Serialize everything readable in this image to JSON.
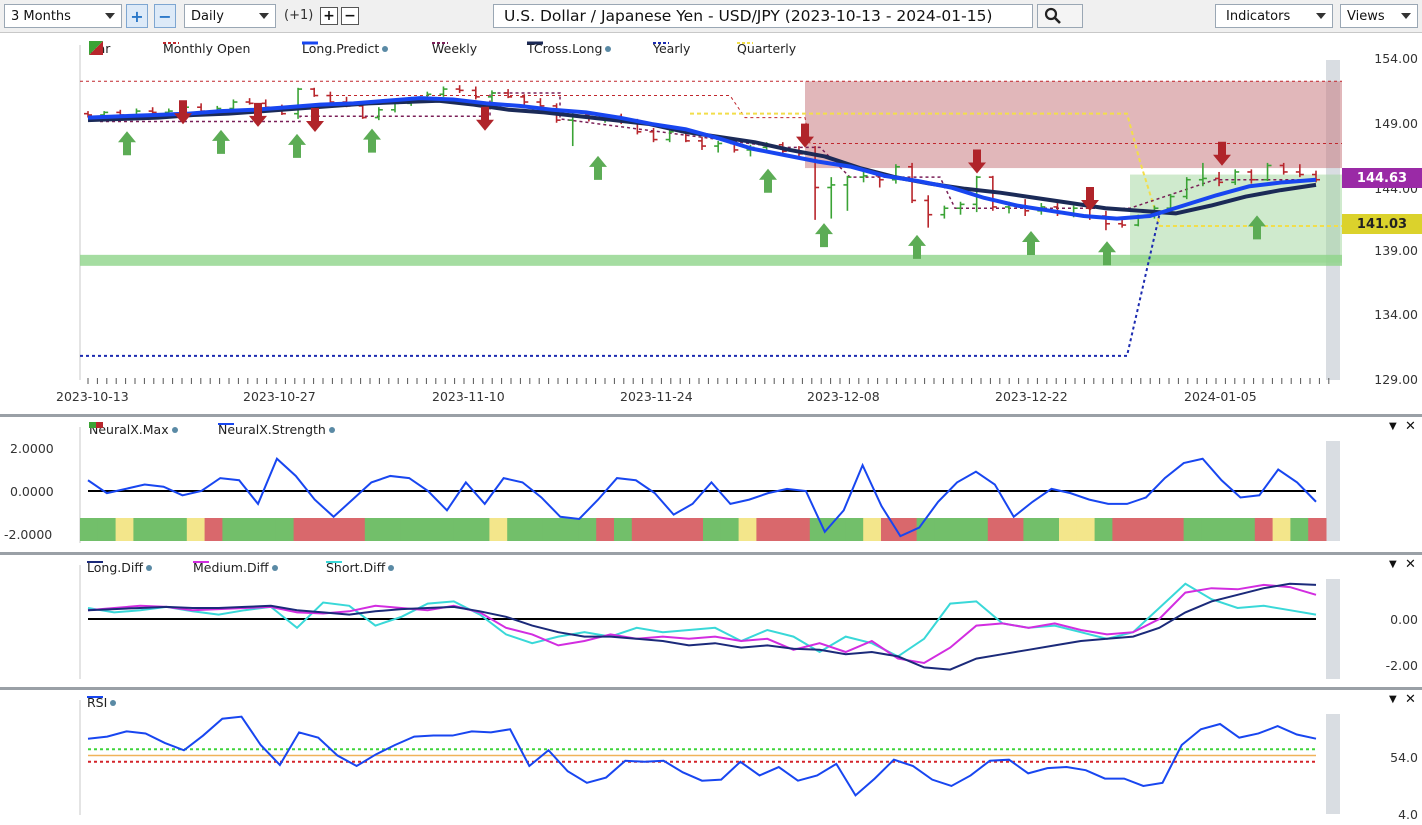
{
  "toolbar": {
    "period": "3 Months",
    "zoom_in": "+",
    "zoom_out": "−",
    "interval": "Daily",
    "offset": "(+1)",
    "add": "+",
    "remove": "−",
    "title": "U.S. Dollar / Japanese Yen - USD/JPY (2023-10-13 - 2024-01-15)",
    "indicators": "Indicators",
    "views": "Views"
  },
  "main_chart": {
    "legend": [
      "Bar",
      "Monthly Open",
      "Long.Predict",
      "Weekly",
      "TCross.Long",
      "Yearly",
      "Quarterly"
    ],
    "y_ticks": [
      "154.00",
      "149.00",
      "144.00",
      "139.00",
      "134.00",
      "129.00"
    ],
    "x_ticks": [
      "2023-10-13",
      "2023-10-27",
      "2023-11-10",
      "2023-11-24",
      "2023-12-08",
      "2023-12-22",
      "2024-01-05"
    ],
    "price_tags": [
      "144.63",
      "141.03"
    ],
    "colors": {
      "up": "#3aa335",
      "down": "#b8262c",
      "long_predict": "#1846f0",
      "tcross": "#1b2a57",
      "monthly": "#c0272d",
      "weekly": "#7a1f57",
      "yearly": "#1c2bb0",
      "quarterly": "#f2de4a"
    }
  },
  "neural_panel": {
    "legend": [
      "NeuralX.Max",
      "NeuralX.Strength"
    ],
    "y_ticks": [
      "2.0000",
      "0.0000",
      "-2.0000"
    ],
    "controls": [
      "▼",
      "✕"
    ]
  },
  "diff_panel": {
    "legend": [
      "Long.Diff",
      "Medium.Diff",
      "Short.Diff"
    ],
    "y_ticks": [
      "0.00",
      "-2.00"
    ],
    "controls": [
      "▼",
      "✕"
    ]
  },
  "rsi_panel": {
    "legend": [
      "RSI"
    ],
    "y_ticks": [
      "54.0",
      "4.0"
    ],
    "controls": [
      "▼",
      "✕"
    ]
  },
  "chart_data": {
    "type": "candlestick",
    "title": "U.S. Dollar / Japanese Yen - USD/JPY (2023-10-13 - 2024-01-15)",
    "x_range": [
      "2023-10-13",
      "2024-01-15"
    ],
    "ylim": [
      129,
      154
    ],
    "bars": [
      {
        "o": 149.7,
        "h": 149.9,
        "l": 149.4,
        "c": 149.6
      },
      {
        "o": 149.6,
        "h": 149.9,
        "l": 149.5,
        "c": 149.8
      },
      {
        "o": 149.8,
        "h": 150.0,
        "l": 149.5,
        "c": 149.6
      },
      {
        "o": 149.6,
        "h": 150.1,
        "l": 149.5,
        "c": 149.9
      },
      {
        "o": 149.9,
        "h": 150.2,
        "l": 149.6,
        "c": 149.8
      },
      {
        "o": 149.8,
        "h": 150.1,
        "l": 149.6,
        "c": 149.9
      },
      {
        "o": 149.9,
        "h": 150.4,
        "l": 149.7,
        "c": 150.2
      },
      {
        "o": 150.2,
        "h": 150.5,
        "l": 149.8,
        "c": 149.9
      },
      {
        "o": 149.9,
        "h": 150.3,
        "l": 149.7,
        "c": 150.1
      },
      {
        "o": 150.1,
        "h": 150.8,
        "l": 150.0,
        "c": 150.6
      },
      {
        "o": 150.6,
        "h": 150.9,
        "l": 150.4,
        "c": 150.5
      },
      {
        "o": 150.5,
        "h": 150.8,
        "l": 150.1,
        "c": 150.2
      },
      {
        "o": 150.2,
        "h": 150.4,
        "l": 149.6,
        "c": 149.7
      },
      {
        "o": 149.7,
        "h": 151.7,
        "l": 149.3,
        "c": 151.6
      },
      {
        "o": 151.6,
        "h": 151.7,
        "l": 151.0,
        "c": 151.1
      },
      {
        "o": 151.1,
        "h": 151.4,
        "l": 150.5,
        "c": 150.6
      },
      {
        "o": 150.6,
        "h": 151.0,
        "l": 150.2,
        "c": 150.3
      },
      {
        "o": 150.3,
        "h": 150.6,
        "l": 149.3,
        "c": 149.4
      },
      {
        "o": 149.4,
        "h": 150.2,
        "l": 149.2,
        "c": 150.0
      },
      {
        "o": 150.0,
        "h": 150.6,
        "l": 149.8,
        "c": 150.5
      },
      {
        "o": 150.5,
        "h": 151.0,
        "l": 150.3,
        "c": 150.9
      },
      {
        "o": 150.9,
        "h": 151.4,
        "l": 150.7,
        "c": 151.2
      },
      {
        "o": 151.2,
        "h": 151.8,
        "l": 151.0,
        "c": 151.6
      },
      {
        "o": 151.6,
        "h": 151.9,
        "l": 151.3,
        "c": 151.5
      },
      {
        "o": 151.5,
        "h": 151.8,
        "l": 150.8,
        "c": 151.0
      },
      {
        "o": 151.0,
        "h": 151.5,
        "l": 150.6,
        "c": 151.3
      },
      {
        "o": 151.3,
        "h": 151.6,
        "l": 150.9,
        "c": 151.0
      },
      {
        "o": 151.0,
        "h": 151.2,
        "l": 150.4,
        "c": 150.6
      },
      {
        "o": 150.6,
        "h": 150.9,
        "l": 150.1,
        "c": 150.3
      },
      {
        "o": 150.3,
        "h": 150.5,
        "l": 149.0,
        "c": 149.2
      },
      {
        "o": 149.2,
        "h": 149.8,
        "l": 147.2,
        "c": 149.6
      },
      {
        "o": 149.6,
        "h": 149.8,
        "l": 149.1,
        "c": 149.4
      },
      {
        "o": 149.4,
        "h": 149.7,
        "l": 149.0,
        "c": 149.5
      },
      {
        "o": 149.5,
        "h": 149.7,
        "l": 148.9,
        "c": 149.1
      },
      {
        "o": 149.1,
        "h": 149.3,
        "l": 148.1,
        "c": 148.3
      },
      {
        "o": 148.3,
        "h": 148.6,
        "l": 147.5,
        "c": 147.7
      },
      {
        "o": 147.7,
        "h": 148.4,
        "l": 147.5,
        "c": 148.3
      },
      {
        "o": 148.3,
        "h": 148.5,
        "l": 147.5,
        "c": 147.6
      },
      {
        "o": 147.6,
        "h": 147.9,
        "l": 146.9,
        "c": 147.2
      },
      {
        "o": 147.2,
        "h": 147.6,
        "l": 146.7,
        "c": 147.4
      },
      {
        "o": 147.4,
        "h": 147.6,
        "l": 146.7,
        "c": 146.9
      },
      {
        "o": 146.9,
        "h": 147.3,
        "l": 146.4,
        "c": 147.1
      },
      {
        "o": 147.1,
        "h": 147.5,
        "l": 146.8,
        "c": 147.3
      },
      {
        "o": 147.3,
        "h": 147.5,
        "l": 146.5,
        "c": 146.8
      },
      {
        "o": 146.8,
        "h": 147.2,
        "l": 146.3,
        "c": 146.6
      },
      {
        "o": 146.6,
        "h": 147.2,
        "l": 141.5,
        "c": 144.0
      },
      {
        "o": 144.0,
        "h": 144.8,
        "l": 141.6,
        "c": 144.2
      },
      {
        "o": 144.2,
        "h": 144.9,
        "l": 142.2,
        "c": 144.8
      },
      {
        "o": 144.8,
        "h": 145.3,
        "l": 144.4,
        "c": 144.9
      },
      {
        "o": 144.9,
        "h": 145.0,
        "l": 144.0,
        "c": 144.6
      },
      {
        "o": 144.6,
        "h": 145.8,
        "l": 144.3,
        "c": 145.6
      },
      {
        "o": 145.6,
        "h": 145.9,
        "l": 142.8,
        "c": 143.0
      },
      {
        "o": 143.0,
        "h": 143.4,
        "l": 140.9,
        "c": 141.9
      },
      {
        "o": 141.9,
        "h": 142.6,
        "l": 141.6,
        "c": 142.4
      },
      {
        "o": 142.4,
        "h": 142.9,
        "l": 141.9,
        "c": 142.7
      },
      {
        "o": 142.7,
        "h": 144.9,
        "l": 142.1,
        "c": 144.8
      },
      {
        "o": 144.8,
        "h": 144.9,
        "l": 142.2,
        "c": 142.5
      },
      {
        "o": 142.5,
        "h": 142.9,
        "l": 142.0,
        "c": 142.6
      },
      {
        "o": 142.6,
        "h": 143.1,
        "l": 141.8,
        "c": 142.2
      },
      {
        "o": 142.2,
        "h": 142.8,
        "l": 141.9,
        "c": 142.5
      },
      {
        "o": 142.5,
        "h": 142.9,
        "l": 141.8,
        "c": 142.0
      },
      {
        "o": 142.0,
        "h": 142.6,
        "l": 141.7,
        "c": 142.4
      },
      {
        "o": 142.4,
        "h": 142.6,
        "l": 141.5,
        "c": 141.8
      },
      {
        "o": 141.8,
        "h": 142.2,
        "l": 140.7,
        "c": 141.2
      },
      {
        "o": 141.2,
        "h": 141.6,
        "l": 140.9,
        "c": 141.1
      },
      {
        "o": 141.1,
        "h": 141.9,
        "l": 141.0,
        "c": 141.8
      },
      {
        "o": 141.8,
        "h": 142.6,
        "l": 141.6,
        "c": 142.4
      },
      {
        "o": 142.4,
        "h": 143.5,
        "l": 142.2,
        "c": 143.3
      },
      {
        "o": 143.3,
        "h": 144.8,
        "l": 143.1,
        "c": 144.6
      },
      {
        "o": 144.6,
        "h": 145.9,
        "l": 144.1,
        "c": 144.7
      },
      {
        "o": 144.7,
        "h": 145.2,
        "l": 144.1,
        "c": 144.4
      },
      {
        "o": 144.4,
        "h": 145.4,
        "l": 144.2,
        "c": 145.2
      },
      {
        "o": 145.2,
        "h": 145.4,
        "l": 144.3,
        "c": 144.6
      },
      {
        "o": 144.6,
        "h": 145.9,
        "l": 144.5,
        "c": 145.7
      },
      {
        "o": 145.7,
        "h": 145.9,
        "l": 145.0,
        "c": 145.2
      },
      {
        "o": 145.2,
        "h": 145.8,
        "l": 144.8,
        "c": 145.0
      },
      {
        "o": 145.0,
        "h": 145.3,
        "l": 144.4,
        "c": 144.6
      }
    ],
    "long_predict": [
      149.4,
      149.5,
      149.6,
      149.7,
      149.9,
      150.0,
      150.2,
      150.4,
      150.5,
      150.7,
      150.9,
      150.8,
      150.5,
      150.3,
      150.0,
      149.8,
      149.4,
      148.9,
      148.5,
      147.8,
      147.0,
      146.5,
      146.0,
      145.6,
      144.9,
      144.5,
      144.0,
      143.2,
      142.6,
      142.2,
      141.8,
      141.6,
      141.8,
      142.6,
      143.4,
      144.1,
      144.4,
      144.6
    ],
    "tcross_long": [
      149.2,
      149.3,
      149.4,
      149.6,
      149.7,
      149.9,
      150.1,
      150.3,
      150.5,
      150.6,
      150.7,
      150.4,
      150.0,
      149.8,
      149.5,
      149.2,
      148.9,
      148.3,
      147.9,
      147.5,
      146.9,
      146.4,
      145.5,
      144.8,
      144.3,
      143.9,
      143.6,
      143.2,
      142.8,
      142.4,
      142.2,
      142.0,
      142.6,
      143.3,
      143.8,
      144.2
    ],
    "neuralx_strength": [
      0.5,
      -0.1,
      0.1,
      0.3,
      0.2,
      -0.2,
      0.0,
      0.6,
      0.5,
      -0.6,
      1.5,
      0.7,
      -0.4,
      -1.2,
      -0.4,
      0.4,
      0.7,
      0.6,
      0.0,
      -0.9,
      0.4,
      -0.6,
      0.6,
      0.4,
      -0.3,
      -1.2,
      -1.3,
      -0.4,
      0.6,
      0.5,
      -0.1,
      -1.1,
      -0.6,
      0.4,
      -0.6,
      -0.4,
      -0.1,
      0.1,
      0.0,
      -1.9,
      -0.9,
      1.2,
      -0.7,
      -2.1,
      -1.7,
      -0.5,
      0.4,
      0.9,
      0.3,
      -1.2,
      -0.5,
      0.1,
      -0.1,
      -0.4,
      -0.6,
      -0.6,
      -0.3,
      0.6,
      1.3,
      1.5,
      0.5,
      -0.3,
      -0.2,
      1.0,
      0.4,
      -0.5
    ],
    "rsi": [
      66,
      68,
      73,
      71,
      62,
      55,
      69,
      85,
      87,
      60,
      41,
      72,
      67,
      50,
      40,
      51,
      60,
      68,
      69,
      69,
      73,
      72,
      75,
      40,
      55,
      35,
      24,
      29,
      45,
      44,
      45,
      34,
      26,
      27,
      44,
      31,
      39,
      26,
      31,
      42,
      12,
      28,
      46,
      40,
      27,
      21,
      31,
      45,
      46,
      33,
      38,
      39,
      36,
      28,
      28,
      21,
      24,
      60,
      75,
      80,
      67,
      71,
      78,
      70,
      66
    ],
    "rsi_levels": {
      "upper": 56,
      "middle": 50,
      "lower": 44
    }
  }
}
